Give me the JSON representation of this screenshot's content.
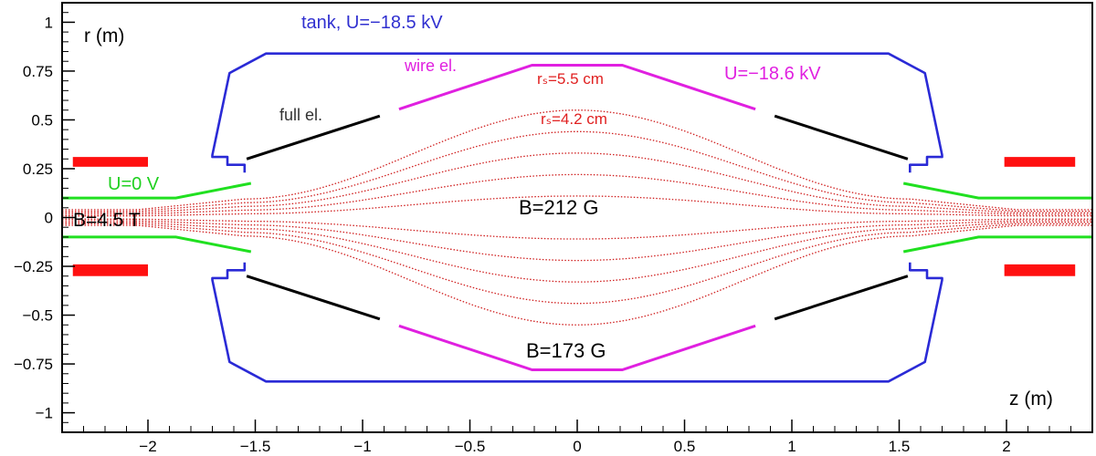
{
  "chart_data": {
    "type": "diagram",
    "xlabel": "z (m)",
    "ylabel": "r (m)",
    "xlim": [
      -2.4,
      2.4
    ],
    "ylim": [
      -1.1,
      1.1
    ],
    "x_ticks": [
      -2,
      -1.5,
      -1,
      -0.5,
      0,
      0.5,
      1,
      1.5,
      2
    ],
    "x_tick_labels": [
      "−2",
      "−1.5",
      "−1",
      "−0.5",
      "0",
      "0.5",
      "1",
      "1.5",
      "2"
    ],
    "y_ticks": [
      1,
      0.75,
      0.5,
      0.25,
      0,
      -0.25,
      -0.5,
      -0.75,
      -1
    ],
    "y_tick_labels": [
      "1",
      "0.75",
      "0.5",
      "0.25",
      "0",
      "−0.25",
      "−0.5",
      "−0.75",
      "−1"
    ],
    "annotations": [
      {
        "id": "tank",
        "text": "tank, U=−18.5 kV",
        "color": "#3030d0"
      },
      {
        "id": "wire",
        "text": "wire el.",
        "color": "#e020e0"
      },
      {
        "id": "u186",
        "text": "U=−18.6 kV",
        "color": "#e020e0"
      },
      {
        "id": "rs55",
        "text": "rₛ=5.5 cm",
        "color": "#e02020"
      },
      {
        "id": "rs42",
        "text": "rₛ=4.2 cm",
        "color": "#e02020"
      },
      {
        "id": "full",
        "text": "full el.",
        "color": "#000000"
      },
      {
        "id": "u0",
        "text": "U=0 V",
        "color": "#20d020"
      },
      {
        "id": "b45",
        "text": "B=4.5 T",
        "color": "#000000"
      },
      {
        "id": "b212",
        "text": "B=212 G",
        "color": "#000000"
      },
      {
        "id": "b173",
        "text": "B=173 G",
        "color": "#000000"
      }
    ],
    "colors": {
      "tank": "#2a2ad6",
      "wire_electrode": "#e020e0",
      "full_electrode": "#000000",
      "ground_electrode": "#20e020",
      "magnets": "#ff1010",
      "field_lines": "#d02020"
    },
    "field_line_radius_factors": [
      1,
      0.8,
      0.6,
      0.4,
      0.2,
      -0.2,
      -0.4,
      -0.6,
      -0.8,
      -1
    ]
  }
}
